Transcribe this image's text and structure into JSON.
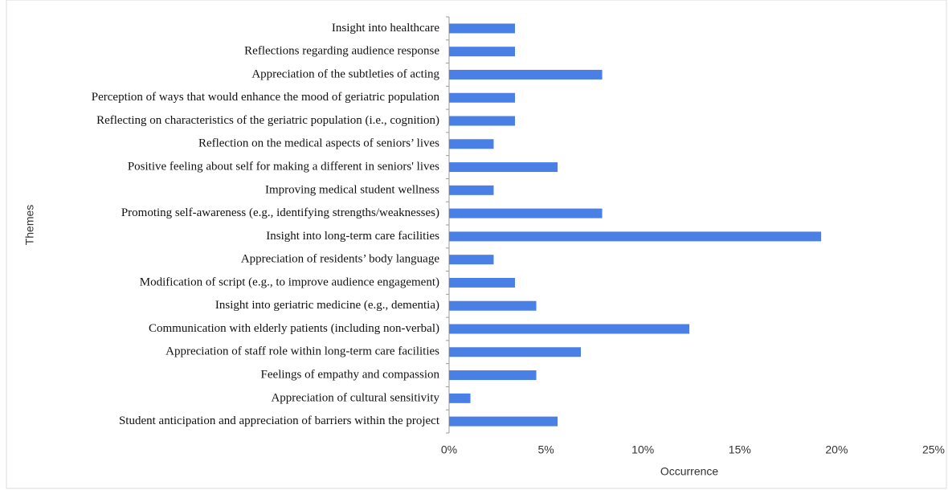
{
  "chart_data": {
    "type": "bar",
    "orientation": "horizontal",
    "x_label": "Occurrence",
    "y_label": "Themes",
    "categories": [
      "Insight into healthcare",
      "Reflections regarding audience response",
      "Appreciation of the subtleties of acting",
      "Perception of ways that would enhance the mood of geriatric population",
      "Reflecting on characteristics of the geriatric population (i.e., cognition)",
      "Reflection on the medical aspects of seniors’ lives",
      "Positive feeling about self for making a different in seniors' lives",
      "Improving medical student wellness",
      "Promoting self-awareness (e.g., identifying strengths/weaknesses)",
      "Insight into long-term care facilities",
      "Appreciation of residents’ body language",
      "Modification of script (e.g., to improve audience engagement)",
      "Insight into geriatric medicine (e.g., dementia)",
      "Communication with elderly patients (including non-verbal)",
      "Appreciation of staff role within long-term care facilities",
      "Feelings of empathy and compassion",
      "Appreciation of cultural sensitivity",
      "Student anticipation and appreciation of barriers within the project"
    ],
    "values": [
      3.4,
      3.4,
      7.9,
      3.4,
      3.4,
      2.3,
      5.6,
      2.3,
      7.9,
      19.2,
      2.3,
      3.4,
      4.5,
      12.4,
      6.8,
      4.5,
      1.1,
      5.6
    ],
    "color": "#4a7fe6",
    "xlim": [
      0,
      25
    ],
    "xticks": [
      {
        "value": 0,
        "label": "0%"
      },
      {
        "value": 5,
        "label": "5%"
      },
      {
        "value": 10,
        "label": "10%"
      },
      {
        "value": 15,
        "label": "15%"
      },
      {
        "value": 20,
        "label": "20%"
      },
      {
        "value": 25,
        "label": "25%"
      }
    ],
    "grid": false
  }
}
